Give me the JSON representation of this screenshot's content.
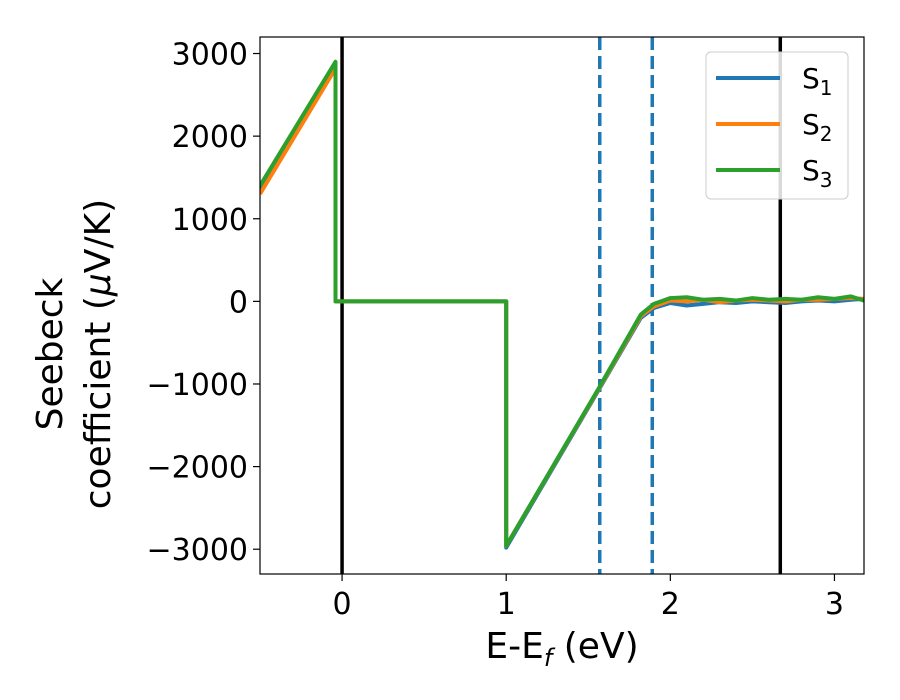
{
  "chart_data": {
    "type": "line",
    "xlabel": {
      "main": "E-E",
      "sub": "f",
      "unit": " (eV)"
    },
    "ylabel": {
      "line1": "Seebeck",
      "line2": "coefficient  (",
      "mu": "μ",
      "unit": "V/K)"
    },
    "xlim": [
      -0.5,
      3.18
    ],
    "ylim": [
      -3300,
      3200
    ],
    "xticks": [
      0,
      1,
      2,
      3
    ],
    "xtick_labels": [
      "0",
      "1",
      "2",
      "3"
    ],
    "yticks": [
      -3000,
      -2000,
      -1000,
      0,
      1000,
      2000,
      3000
    ],
    "ytick_labels": [
      "−3000",
      "−2000",
      "−1000",
      "0",
      "1000",
      "2000",
      "3000"
    ],
    "legend_position": "top-right",
    "vlines": [
      {
        "x": 0.0,
        "style": "solid",
        "color": "#000000"
      },
      {
        "x": 2.67,
        "style": "solid",
        "color": "#000000"
      },
      {
        "x": 1.57,
        "style": "dashed",
        "color": "#1f77b4"
      },
      {
        "x": 1.89,
        "style": "dashed",
        "color": "#1f77b4"
      }
    ],
    "series": [
      {
        "name": "S",
        "sub": "1",
        "color": "#1f77b4",
        "x": [
          -0.5,
          -0.04,
          -0.04,
          1.0,
          1.0,
          1.57,
          1.82,
          1.9,
          2.0,
          2.1,
          2.2,
          2.3,
          2.4,
          2.5,
          2.6,
          2.7,
          2.8,
          2.9,
          3.0,
          3.1,
          3.18
        ],
        "y": [
          1350,
          2850,
          0,
          0,
          -2980,
          -1050,
          -200,
          -80,
          -20,
          -50,
          -30,
          -10,
          -20,
          0,
          -10,
          -20,
          0,
          10,
          0,
          20,
          30
        ]
      },
      {
        "name": "S",
        "sub": "2",
        "color": "#ff7f0e",
        "x": [
          -0.5,
          -0.04,
          -0.04,
          1.0,
          1.0,
          1.57,
          1.82,
          1.9,
          2.0,
          2.1,
          2.2,
          2.3,
          2.4,
          2.5,
          2.6,
          2.7,
          2.8,
          2.9,
          3.0,
          3.1,
          3.18
        ],
        "y": [
          1300,
          2820,
          0,
          0,
          -2960,
          -1040,
          -180,
          -60,
          10,
          0,
          20,
          -10,
          10,
          20,
          10,
          0,
          20,
          20,
          30,
          40,
          30
        ]
      },
      {
        "name": "S",
        "sub": "3",
        "color": "#2ca02c",
        "x": [
          -0.5,
          -0.04,
          -0.04,
          1.0,
          1.0,
          1.57,
          1.82,
          1.9,
          2.0,
          2.1,
          2.2,
          2.3,
          2.4,
          2.5,
          2.6,
          2.7,
          2.8,
          2.9,
          3.0,
          3.1,
          3.18
        ],
        "y": [
          1400,
          2900,
          0,
          0,
          -2960,
          -1030,
          -160,
          -30,
          40,
          50,
          20,
          30,
          10,
          40,
          20,
          30,
          20,
          50,
          30,
          60,
          10
        ]
      }
    ]
  }
}
